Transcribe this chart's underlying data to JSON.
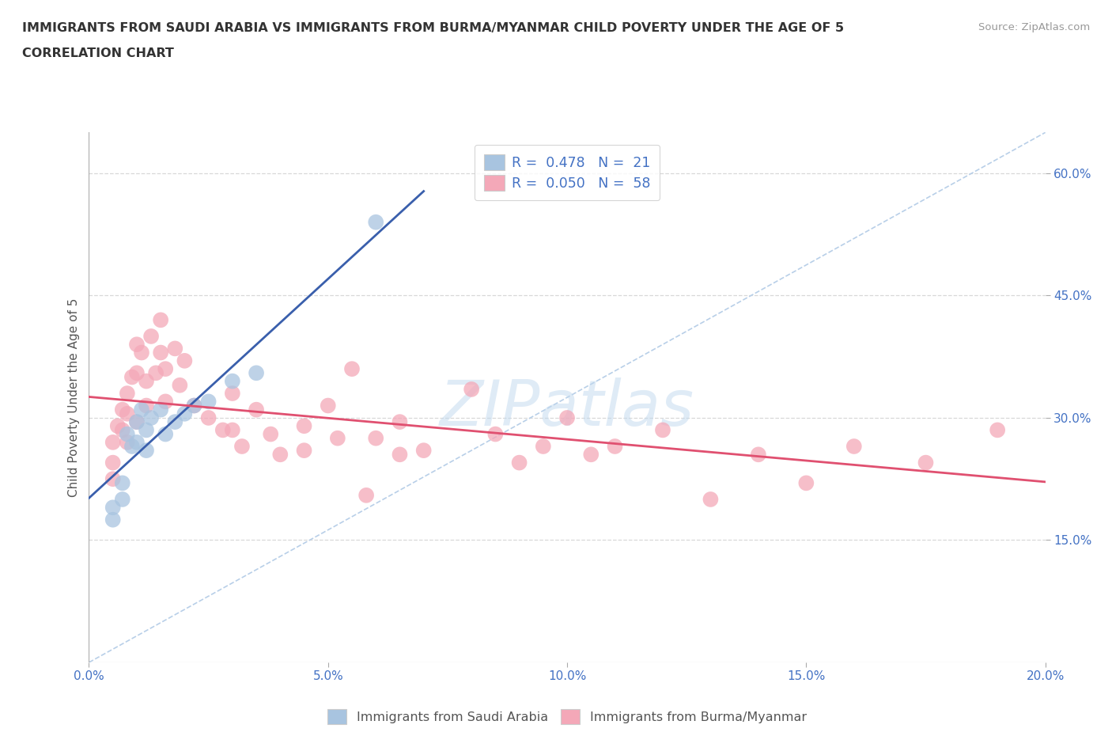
{
  "title_line1": "IMMIGRANTS FROM SAUDI ARABIA VS IMMIGRANTS FROM BURMA/MYANMAR CHILD POVERTY UNDER THE AGE OF 5",
  "title_line2": "CORRELATION CHART",
  "source_text": "Source: ZipAtlas.com",
  "ylabel": "Child Poverty Under the Age of 5",
  "xmin": 0.0,
  "xmax": 0.2,
  "ymin": 0.0,
  "ymax": 0.65,
  "xticks": [
    0.0,
    0.05,
    0.1,
    0.15,
    0.2
  ],
  "xtick_labels": [
    "0.0%",
    "5.0%",
    "10.0%",
    "15.0%",
    "20.0%"
  ],
  "yticks": [
    0.15,
    0.3,
    0.45,
    0.6
  ],
  "ytick_labels": [
    "15.0%",
    "30.0%",
    "45.0%",
    "60.0%"
  ],
  "watermark": "ZIPatlas",
  "saudi_color": "#a8c4e0",
  "burma_color": "#f4a8b8",
  "saudi_line_color": "#3a5fac",
  "burma_line_color": "#e05070",
  "diag_line_color": "#b8cfe8",
  "grid_color": "#d8d8d8",
  "saudi_scatter_x": [
    0.005,
    0.005,
    0.007,
    0.007,
    0.008,
    0.009,
    0.01,
    0.01,
    0.011,
    0.012,
    0.012,
    0.013,
    0.015,
    0.016,
    0.018,
    0.02,
    0.022,
    0.025,
    0.03,
    0.035,
    0.06
  ],
  "saudi_scatter_y": [
    0.19,
    0.175,
    0.22,
    0.2,
    0.28,
    0.265,
    0.295,
    0.27,
    0.31,
    0.285,
    0.26,
    0.3,
    0.31,
    0.28,
    0.295,
    0.305,
    0.315,
    0.32,
    0.345,
    0.355,
    0.54
  ],
  "burma_scatter_x": [
    0.005,
    0.005,
    0.005,
    0.006,
    0.007,
    0.007,
    0.008,
    0.008,
    0.008,
    0.009,
    0.01,
    0.01,
    0.01,
    0.011,
    0.012,
    0.012,
    0.013,
    0.014,
    0.015,
    0.015,
    0.016,
    0.016,
    0.018,
    0.019,
    0.02,
    0.022,
    0.025,
    0.028,
    0.03,
    0.03,
    0.032,
    0.035,
    0.038,
    0.04,
    0.045,
    0.045,
    0.05,
    0.052,
    0.055,
    0.058,
    0.06,
    0.065,
    0.065,
    0.07,
    0.08,
    0.085,
    0.09,
    0.095,
    0.1,
    0.105,
    0.11,
    0.12,
    0.13,
    0.14,
    0.15,
    0.16,
    0.175,
    0.19
  ],
  "burma_scatter_y": [
    0.27,
    0.245,
    0.225,
    0.29,
    0.31,
    0.285,
    0.33,
    0.305,
    0.27,
    0.35,
    0.39,
    0.355,
    0.295,
    0.38,
    0.345,
    0.315,
    0.4,
    0.355,
    0.42,
    0.38,
    0.36,
    0.32,
    0.385,
    0.34,
    0.37,
    0.315,
    0.3,
    0.285,
    0.33,
    0.285,
    0.265,
    0.31,
    0.28,
    0.255,
    0.29,
    0.26,
    0.315,
    0.275,
    0.36,
    0.205,
    0.275,
    0.295,
    0.255,
    0.26,
    0.335,
    0.28,
    0.245,
    0.265,
    0.3,
    0.255,
    0.265,
    0.285,
    0.2,
    0.255,
    0.22,
    0.265,
    0.245,
    0.285
  ]
}
